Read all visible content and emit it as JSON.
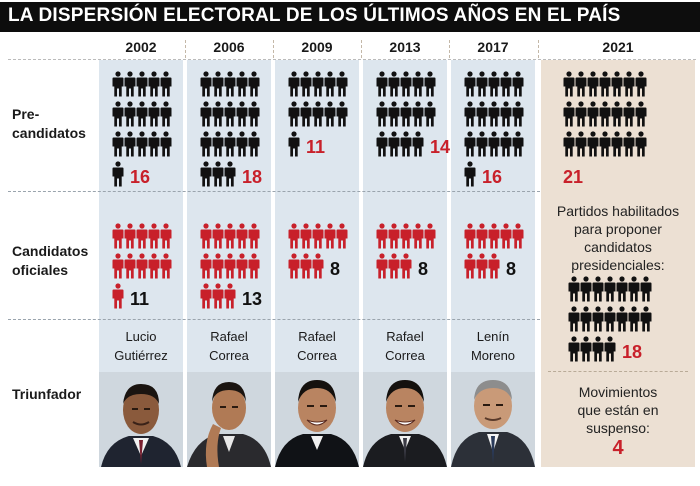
{
  "title": "LA DISPERSIÓN ELECTORAL DE LOS ÚLTIMOS AÑOS EN EL PAÍS",
  "years": [
    "2002",
    "2006",
    "2009",
    "2013",
    "2017",
    "2021"
  ],
  "row_labels": {
    "precandidatos": "Pre-\ncandidatos",
    "candidatos": "Candidatos\noficiales",
    "triunfador": "Triunfador"
  },
  "precandidatos": [
    "16",
    "18",
    "11",
    "14",
    "16",
    "21"
  ],
  "candidatos": [
    "11",
    "13",
    "8",
    "8",
    "8"
  ],
  "triunfadores": [
    {
      "name": "Lucio\nGutiérrez"
    },
    {
      "name": "Rafael\nCorrea"
    },
    {
      "name": "Rafael\nCorrea"
    },
    {
      "name": "Rafael\nCorrea"
    },
    {
      "name": "Lenín\nMoreno"
    }
  ],
  "partidos_text": "Partidos habilitados\npara proponer\ncandidatos\npresidenciales:",
  "partidos_count": "18",
  "movimientos_text": "Movimientos\nque están en\nsuspenso:",
  "movimientos_count": "4",
  "colors": {
    "red": "#c8202a",
    "black": "#111111",
    "column_blue": "#dde6ee",
    "column_beige": "#ece0d3"
  }
}
